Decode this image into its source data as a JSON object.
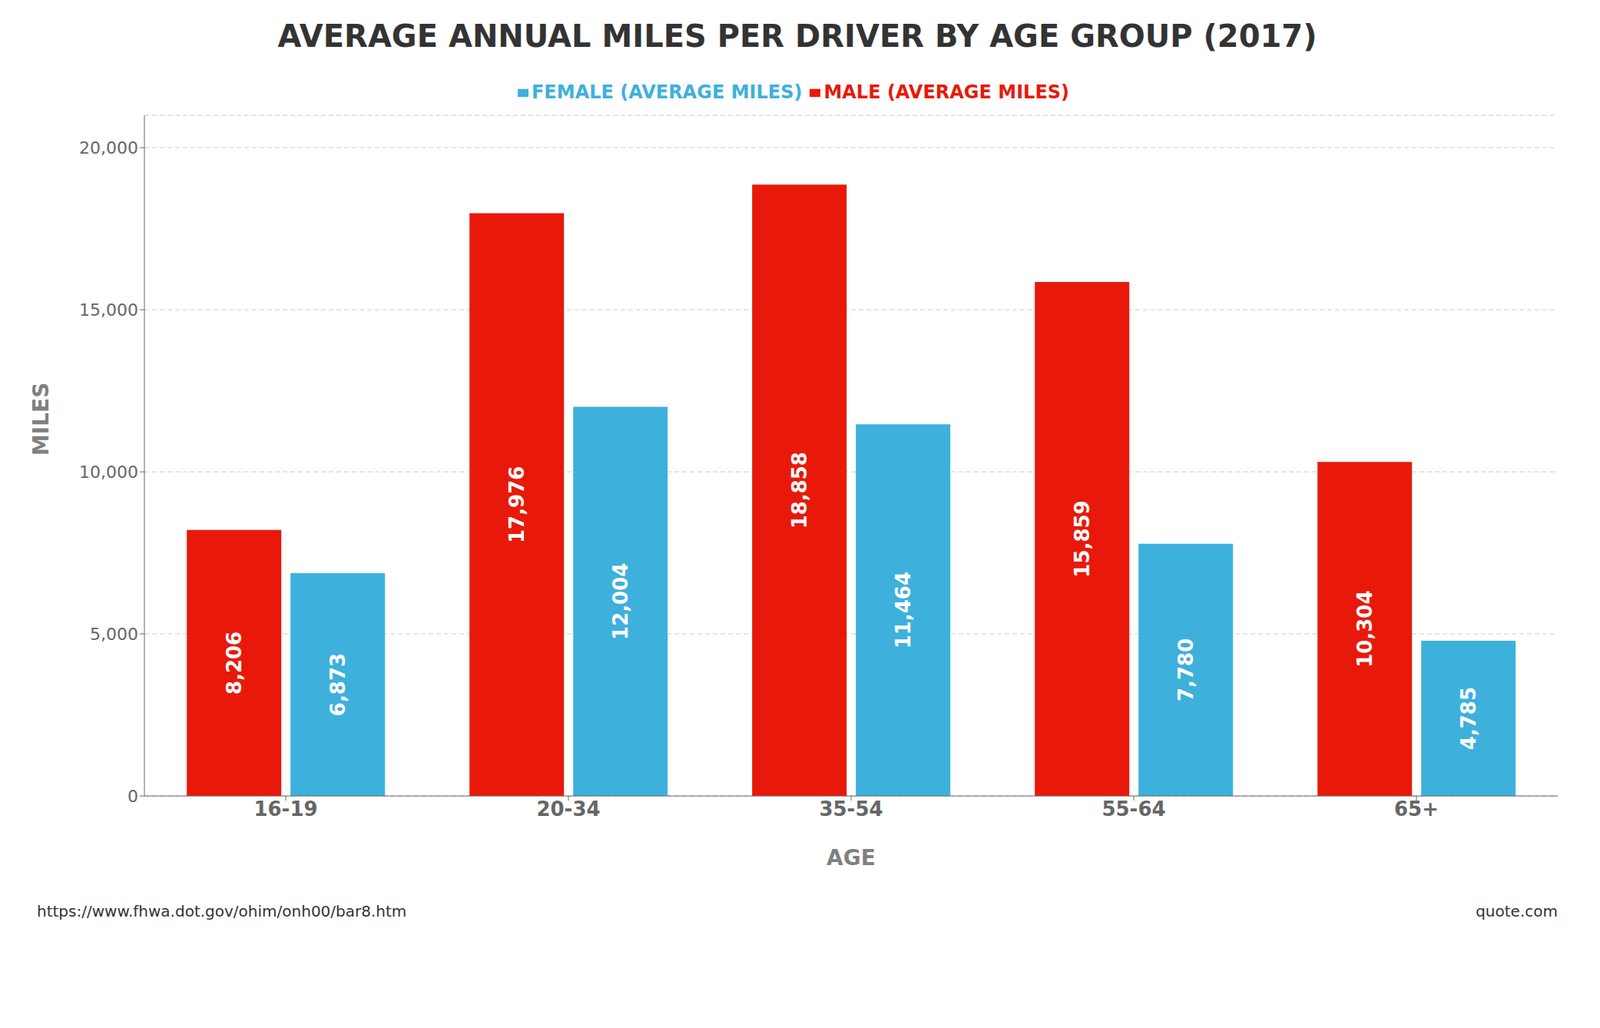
{
  "chart_data": {
    "type": "bar",
    "title": "AVERAGE ANNUAL MILES PER DRIVER BY AGE GROUP (2017)",
    "categories": [
      "16-19",
      "20-34",
      "35-54",
      "55-64",
      "65+"
    ],
    "series": [
      {
        "name": "MALE (AVERAGE MILES)",
        "color": "#E8190A",
        "values": [
          8206,
          17976,
          18858,
          15859,
          10304
        ],
        "value_labels": [
          "8,206",
          "17,976",
          "18,858",
          "15,859",
          "10,304"
        ]
      },
      {
        "name": "FEMALE (AVERAGE MILES)",
        "color": "#3EB0DC",
        "values": [
          6873,
          12004,
          11464,
          7780,
          4785
        ],
        "value_labels": [
          "6,873",
          "12,004",
          "11,464",
          "7,780",
          "4,785"
        ]
      }
    ],
    "xlabel": "AGE",
    "ylabel": "MILES",
    "ylim": [
      0,
      21000
    ],
    "yticks": [
      0,
      {
        "value": 5000,
        "label": "5,000"
      },
      {
        "value": 10000,
        "label": "10,000"
      },
      {
        "value": 15000,
        "label": "15,000"
      },
      {
        "value": 20000,
        "label": "20,000"
      }
    ],
    "grid": true,
    "legend": "top",
    "data_labels": true,
    "annotations": [
      "https://www.fhwa.dot.gov/ohim/onh00/bar8.htm",
      "quote.com"
    ]
  }
}
